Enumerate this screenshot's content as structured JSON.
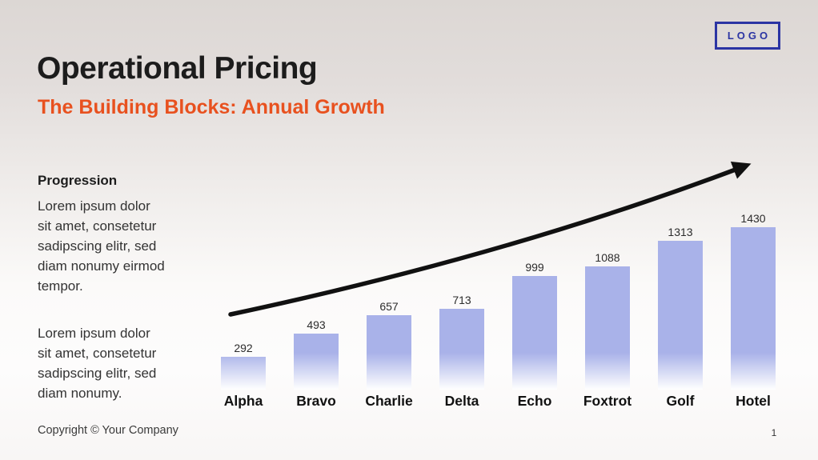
{
  "slide": {
    "title": "Operational Pricing",
    "subtitle": "The Building Blocks: Annual Growth",
    "logo_text": "LOGO",
    "footer": "Copyright © Your Company",
    "page_number": "1"
  },
  "sidebar": {
    "heading": "Progression",
    "paragraph1": "Lorem ipsum dolor\nsit amet, consetetur\nsadipscing elitr, sed\ndiam nonumy eirmod\ntempor.",
    "paragraph2": "Lorem ipsum dolor\nsit amet, consetetur\nsadipscing elitr, sed\ndiam nonumy."
  },
  "chart_data": {
    "type": "bar",
    "categories": [
      "Alpha",
      "Bravo",
      "Charlie",
      "Delta",
      "Echo",
      "Foxtrot",
      "Golf",
      "Hotel"
    ],
    "values": [
      292,
      493,
      657,
      713,
      999,
      1088,
      1313,
      1430
    ],
    "title": "",
    "xlabel": "",
    "ylabel": "",
    "ylim": [
      0,
      1430
    ],
    "grid": false,
    "legend": "none",
    "data_labels": true,
    "annotation": "upward curved trend arrow over bars"
  },
  "colors": {
    "accent_orange": "#e8511f",
    "logo_blue": "#2b34a3",
    "bar_fill": "#a9b2e9",
    "arrow_black": "#111111",
    "background_top": "#dcd7d4",
    "background_bottom": "#f8f6f5"
  }
}
